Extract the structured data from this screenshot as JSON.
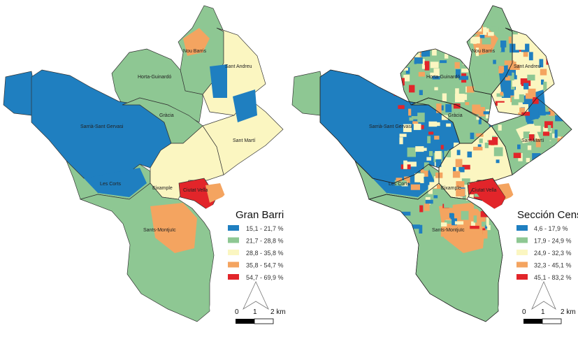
{
  "colors": {
    "c1": "#1f7fc0",
    "c2": "#8ec793",
    "c3": "#fbf6c1",
    "c4": "#f4a460",
    "c5": "#e2252a",
    "water": "#ffffff",
    "border": "#333333"
  },
  "maps": [
    {
      "legend_title": "Gran Barri",
      "classes": [
        "15,1 - 21,7 %",
        "21,7 - 28,8 %",
        "28,8 - 35,8 %",
        "35,8 - 54,7 %",
        "54,7 - 69,9 %"
      ],
      "districts": [
        "Nou Barris",
        "Sant Andreu",
        "Horta-Guinardó",
        "Sarrià-Sant Gervasi",
        "Gràcia",
        "Sant Martí",
        "Les Corts",
        "Eixample",
        "Ciutat Vella",
        "Sants-Montjuïc"
      ],
      "scale": {
        "l0": "0",
        "l1": "1",
        "l2": "2 km"
      }
    },
    {
      "legend_title": "Sección Censal",
      "classes": [
        "4,6 - 17,9 %",
        "17,9 - 24,9 %",
        "24,9 - 32,3 %",
        "32,3 - 45,1 %",
        "45,1 - 83,2 %"
      ],
      "districts": [
        "Nou Barris",
        "Sant Andreu",
        "Horta-Guinardó",
        "Sarrià-Sant Gervasi",
        "Gràcia",
        "Sant Martí",
        "Les Corts",
        "Eixample",
        "Ciutat Vella",
        "Sants-Montjuïc"
      ],
      "scale": {
        "l0": "0",
        "l1": "1",
        "l2": "2 km"
      }
    }
  ]
}
